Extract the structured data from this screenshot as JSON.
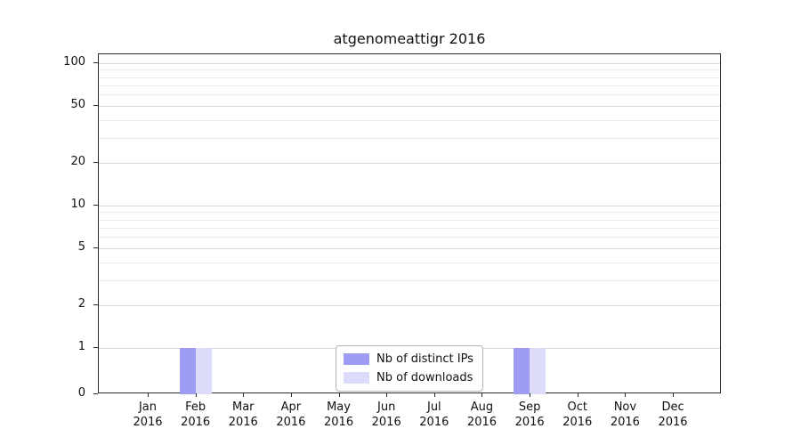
{
  "chart_data": {
    "type": "bar",
    "title": "atgenomeattigr 2016",
    "months": [
      "Jan",
      "Feb",
      "Mar",
      "Apr",
      "May",
      "Jun",
      "Jul",
      "Aug",
      "Sep",
      "Oct",
      "Nov",
      "Dec"
    ],
    "year": "2016",
    "categories": [
      "Jan 2016",
      "Feb 2016",
      "Mar 2016",
      "Apr 2016",
      "May 2016",
      "Jun 2016",
      "Jul 2016",
      "Aug 2016",
      "Sep 2016",
      "Oct 2016",
      "Nov 2016",
      "Dec 2016"
    ],
    "series": [
      {
        "name": "Nb of distinct IPs",
        "color": "#9e9cf2",
        "values": [
          0,
          1,
          0,
          0,
          0,
          0,
          0,
          0,
          1,
          0,
          0,
          0
        ]
      },
      {
        "name": "Nb of downloads",
        "color": "#dcdcfa",
        "values": [
          0,
          1,
          0,
          0,
          0,
          0,
          0,
          0,
          1,
          0,
          0,
          0
        ]
      }
    ],
    "yscale": "log",
    "yticks": [
      0,
      1,
      2,
      5,
      10,
      20,
      50,
      100
    ],
    "minor_yticks": [
      3,
      4,
      6,
      7,
      8,
      9,
      30,
      40,
      60,
      70,
      80,
      90
    ],
    "ylim": [
      0,
      115
    ],
    "xlabel": "",
    "ylabel": "",
    "grid": true,
    "legend_position": "lower center"
  }
}
